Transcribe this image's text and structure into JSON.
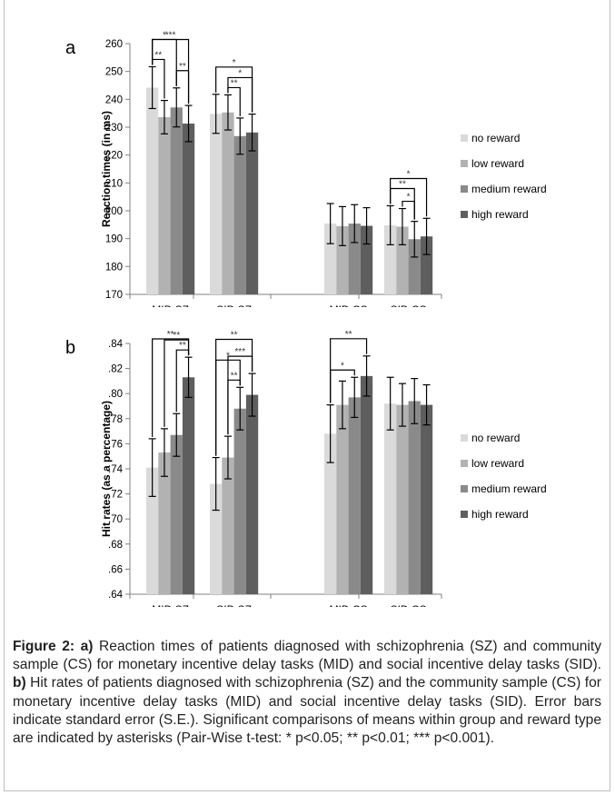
{
  "colors": {
    "series": [
      "#dadada",
      "#b2b2b2",
      "#8a8a8a",
      "#5e5e5e"
    ],
    "axis": "#808080",
    "text": "#000000",
    "caption": "#231f20"
  },
  "legend_labels": [
    "no reward",
    "low reward",
    "medium reward",
    "high reward"
  ],
  "chart_data": [
    {
      "type": "bar",
      "panel_label": "a",
      "ylabel": "Reaction times (in ms)",
      "categories": [
        "MID SZ",
        "SID SZ",
        "MID CS",
        "SID CS"
      ],
      "ylim": [
        170,
        260
      ],
      "yticks": [
        "170",
        "180",
        "190",
        "200",
        "210",
        "220",
        "230",
        "240",
        "250",
        "260"
      ],
      "legend_position": "right",
      "series": [
        {
          "name": "no reward",
          "values": [
            244.2,
            234.8,
            195.4,
            194.8
          ],
          "errors": [
            7.5,
            7.0,
            7.2,
            7.0
          ]
        },
        {
          "name": "low reward",
          "values": [
            233.6,
            235.3,
            194.5,
            194.3
          ],
          "errors": [
            6.0,
            6.3,
            7.0,
            6.5
          ]
        },
        {
          "name": "medium reward",
          "values": [
            237.1,
            226.8,
            195.4,
            189.8
          ],
          "errors": [
            7.0,
            6.5,
            6.8,
            6.4
          ]
        },
        {
          "name": "high reward",
          "values": [
            231.3,
            228.1,
            194.6,
            190.8
          ],
          "errors": [
            6.5,
            6.6,
            6.5,
            6.5
          ]
        }
      ],
      "significance": [
        {
          "group": 0,
          "from": 0,
          "to": 3,
          "label": "***"
        },
        {
          "group": 0,
          "from": 0,
          "to": 2,
          "label": "*"
        },
        {
          "group": 0,
          "from": 0,
          "to": 1,
          "label": "**"
        },
        {
          "group": 0,
          "from": 2,
          "to": 3,
          "label": "**"
        },
        {
          "group": 1,
          "from": 0,
          "to": 3,
          "label": "*"
        },
        {
          "group": 1,
          "from": 1,
          "to": 3,
          "label": "*"
        },
        {
          "group": 1,
          "from": 1,
          "to": 2,
          "label": "**"
        },
        {
          "group": 3,
          "from": 0,
          "to": 3,
          "label": "*"
        },
        {
          "group": 3,
          "from": 0,
          "to": 2,
          "label": "**"
        },
        {
          "group": 3,
          "from": 1,
          "to": 2,
          "label": "*"
        }
      ]
    },
    {
      "type": "bar",
      "panel_label": "b",
      "ylabel": "Hit rates (as a percentage)",
      "categories": [
        "MID SZ",
        "SID SZ",
        "MID CS",
        "SID CS"
      ],
      "ylim": [
        0.64,
        0.84
      ],
      "yticks": [
        ".64",
        ".66",
        ".68",
        ".70",
        ".72",
        ".74",
        ".76",
        ".78",
        ".80",
        ".82",
        ".84"
      ],
      "legend_position": "right",
      "series": [
        {
          "name": "no reward",
          "values": [
            0.741,
            0.728,
            0.768,
            0.792
          ],
          "errors": [
            0.023,
            0.021,
            0.023,
            0.021
          ]
        },
        {
          "name": "low reward",
          "values": [
            0.753,
            0.749,
            0.791,
            0.791
          ],
          "errors": [
            0.019,
            0.017,
            0.019,
            0.017
          ]
        },
        {
          "name": "medium reward",
          "values": [
            0.767,
            0.788,
            0.797,
            0.794
          ],
          "errors": [
            0.017,
            0.017,
            0.016,
            0.018
          ]
        },
        {
          "name": "high reward",
          "values": [
            0.813,
            0.799,
            0.814,
            0.791
          ],
          "errors": [
            0.016,
            0.017,
            0.016,
            0.016
          ]
        }
      ],
      "significance": [
        {
          "group": 0,
          "from": 0,
          "to": 3,
          "label": "**"
        },
        {
          "group": 0,
          "from": 1,
          "to": 3,
          "label": "**"
        },
        {
          "group": 0,
          "from": 2,
          "to": 3,
          "label": "**"
        },
        {
          "group": 1,
          "from": 0,
          "to": 3,
          "label": "**"
        },
        {
          "group": 1,
          "from": 1,
          "to": 3,
          "label": "***"
        },
        {
          "group": 1,
          "from": 1,
          "to": 2,
          "label": "**"
        },
        {
          "group": 1,
          "from": 0,
          "to": 2,
          "label": "*"
        },
        {
          "group": 2,
          "from": 0,
          "to": 3,
          "label": "**"
        },
        {
          "group": 2,
          "from": 0,
          "to": 2,
          "label": "*"
        }
      ]
    }
  ],
  "caption": {
    "a_label": "Figure 2: a)",
    "a_text": " Reaction times of patients diagnosed with schizophrenia (SZ) and community sample (CS) for monetary incentive delay tasks (MID) and social incentive delay tasks (SID). ",
    "b_label": "b)",
    "b_text": " Hit rates of patients diagnosed with schizophrenia (SZ) and the community sample (CS) for monetary incentive delay tasks (MID) and social incentive delay tasks (SID). Error bars indicate standard error (S.E.). Significant comparisons of means within group and reward type are indicated by asterisks (Pair-Wise t-test: * p<0.05; ** p<0.01; *** p<0.001)."
  }
}
